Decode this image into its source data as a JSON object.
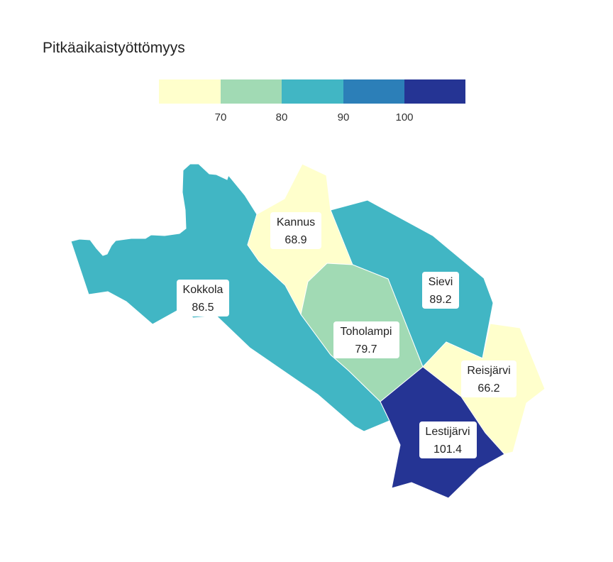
{
  "title": "Pitkäaikaistyöttömyys",
  "legend": {
    "colors": [
      "#ffffcc",
      "#a1dab4",
      "#41b6c4",
      "#2c7fb8",
      "#253494"
    ],
    "ticks": [
      "70",
      "80",
      "90",
      "100"
    ]
  },
  "chart_data": {
    "type": "choropleth",
    "title": "Pitkäaikaistyöttömyys",
    "bins": [
      70,
      80,
      90,
      100
    ],
    "regions": [
      {
        "name": "Kokkola",
        "value": "86.5",
        "color": "#41b6c4"
      },
      {
        "name": "Kannus",
        "value": "68.9",
        "color": "#ffffcc"
      },
      {
        "name": "Sievi",
        "value": "89.2",
        "color": "#41b6c4"
      },
      {
        "name": "Toholampi",
        "value": "79.7",
        "color": "#a1dab4"
      },
      {
        "name": "Reisjärvi",
        "value": "66.2",
        "color": "#ffffcc"
      },
      {
        "name": "Lestijärvi",
        "value": "101.4",
        "color": "#253494"
      }
    ]
  }
}
